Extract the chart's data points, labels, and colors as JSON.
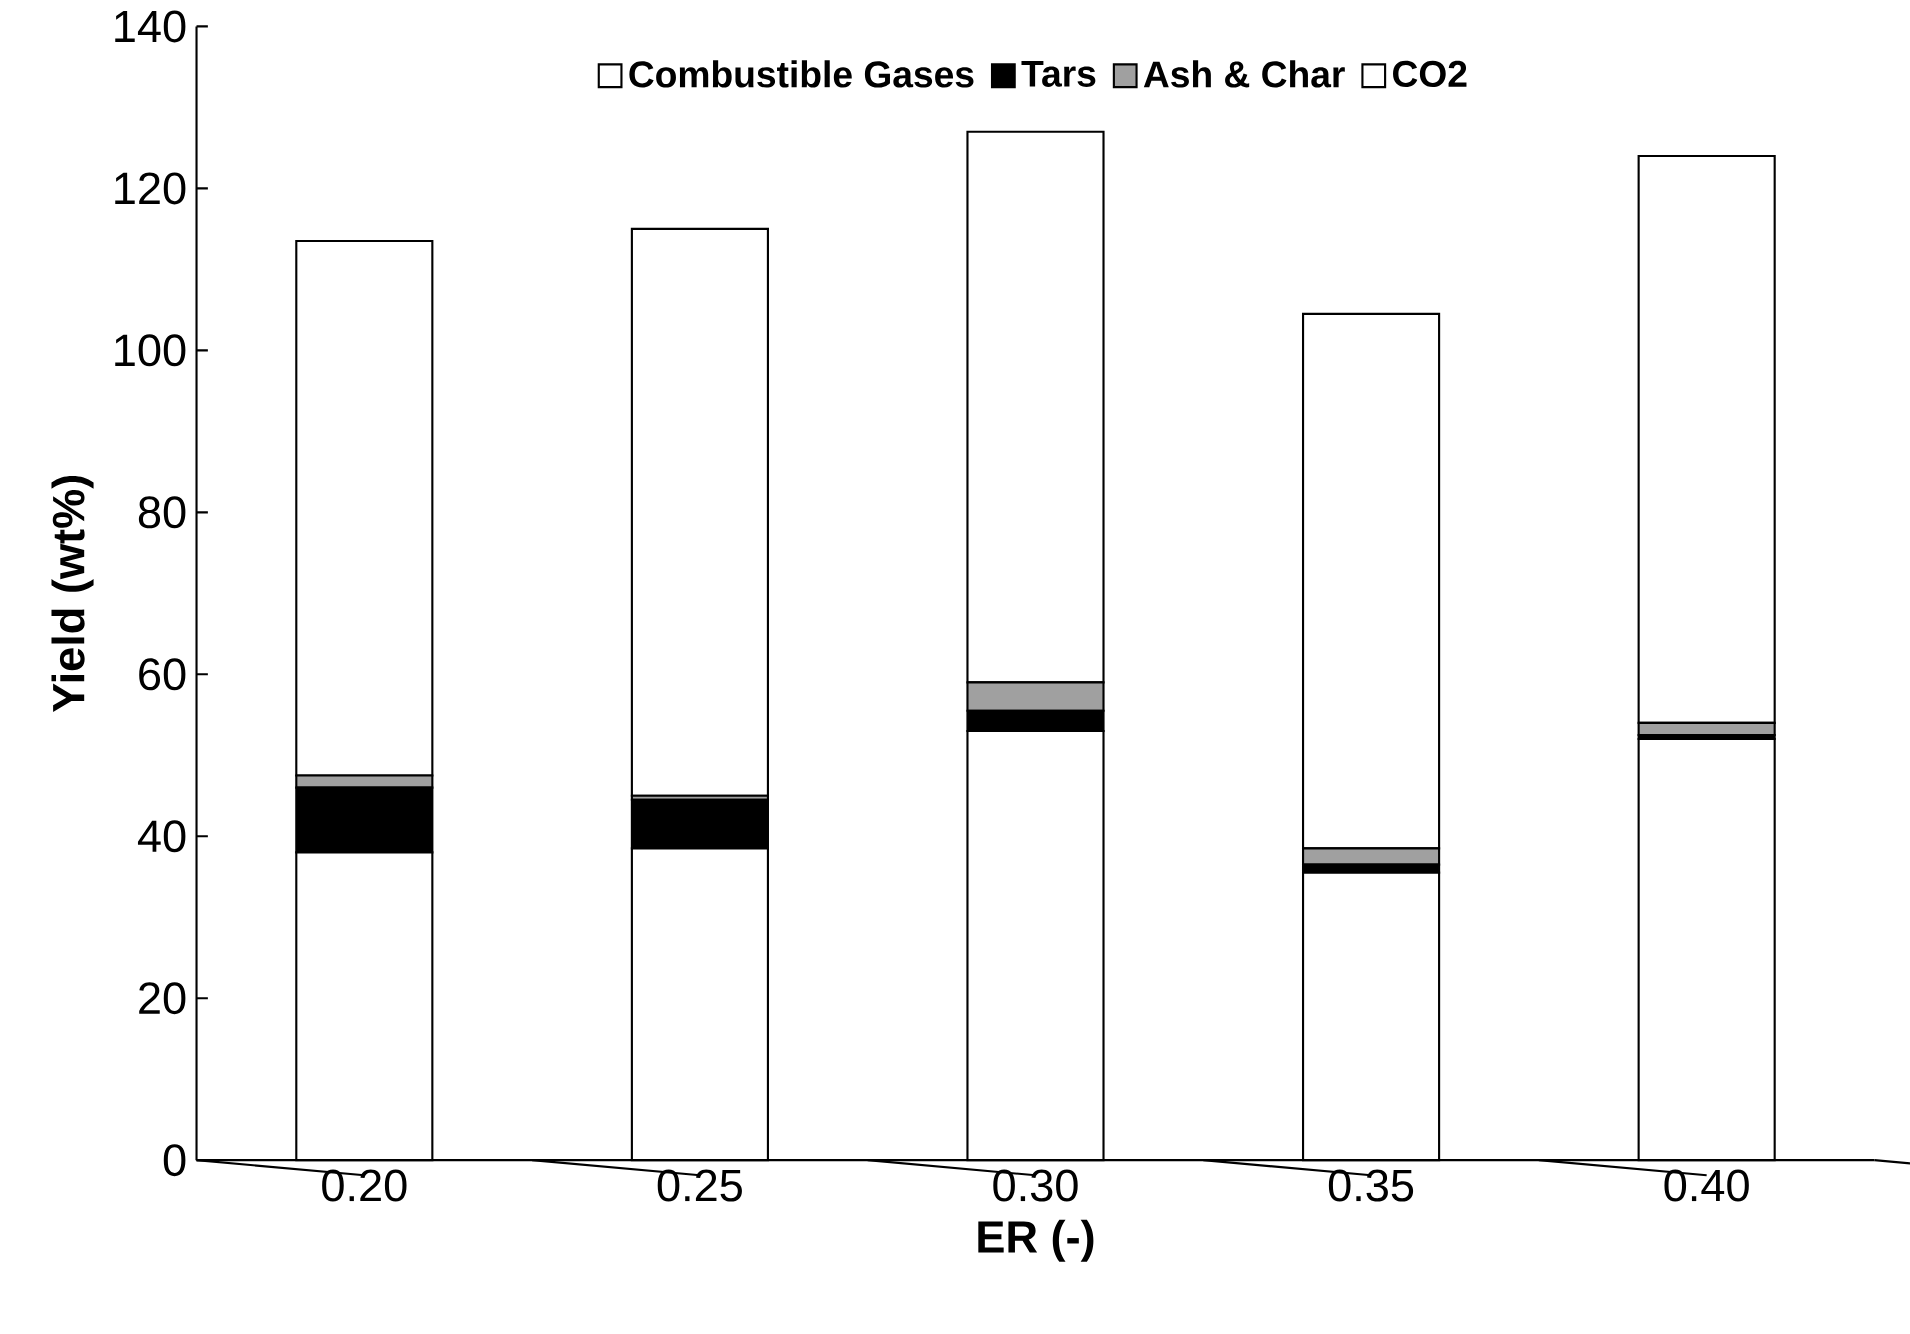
{
  "chart_data": {
    "type": "bar",
    "stacked": true,
    "xlabel": "ER (-)",
    "ylabel": "Yield (wt%)",
    "categories": [
      "0.20",
      "0.25",
      "0.30",
      "0.35",
      "0.40"
    ],
    "series": [
      {
        "name": "Combustible Gases",
        "color": "#ffffff",
        "values": [
          38,
          38.5,
          53,
          35.5,
          52
        ]
      },
      {
        "name": "Tars",
        "color": "#000000",
        "values": [
          8,
          6,
          2.5,
          1,
          0.5
        ]
      },
      {
        "name": "Ash & Char",
        "color": "#a0a0a0",
        "values": [
          1.5,
          0.5,
          3.5,
          2,
          1.5
        ]
      },
      {
        "name": "CO2",
        "color": "#ffffff",
        "values": [
          66,
          70,
          68,
          66,
          70
        ]
      }
    ],
    "ylim": [
      0,
      140
    ],
    "yticks": [
      0,
      20,
      40,
      60,
      80,
      100,
      120,
      140
    ],
    "legend": "top",
    "grid": false
  }
}
